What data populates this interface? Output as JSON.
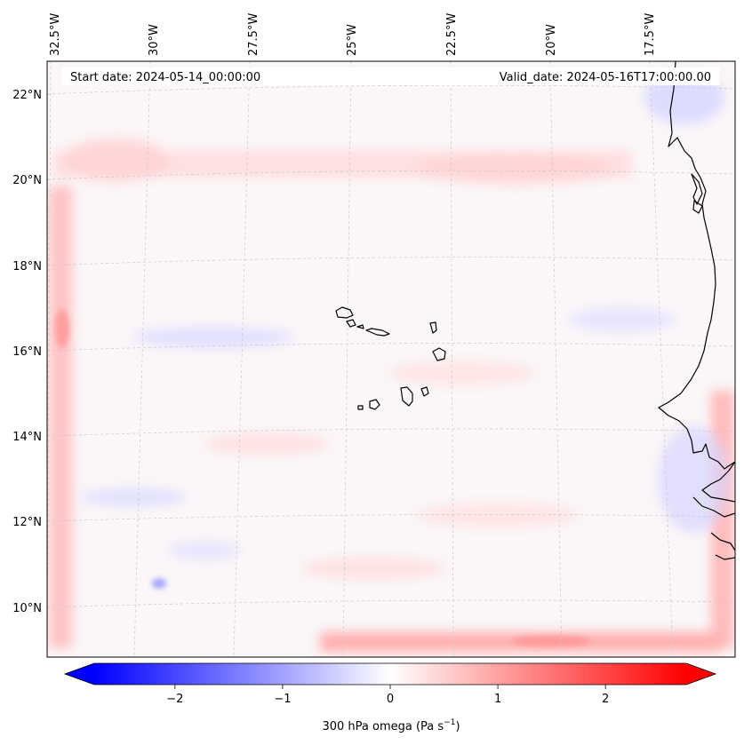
{
  "chart_data": {
    "type": "heatmap",
    "title": "",
    "start_date_label": "Start date: 2024-05-14_00:00:00",
    "valid_date_label": "Valid_date: 2024-05-16T17:00:00.00",
    "lon_ticks": [
      "32.5°W",
      "30°W",
      "27.5°W",
      "25°W",
      "22.5°W",
      "20°W",
      "17.5°W"
    ],
    "lat_ticks": [
      "22°N",
      "20°N",
      "18°N",
      "16°N",
      "14°N",
      "12°N",
      "10°N"
    ],
    "lon_range": [
      -33.0,
      -15.5
    ],
    "lat_range": [
      8.9,
      22.8
    ],
    "colorbar": {
      "label_prefix": "300 hPa omega (Pa s",
      "label_exp": "−1",
      "label_suffix": ")",
      "ticks": [
        "−2",
        "−1",
        "0",
        "1",
        "2"
      ],
      "range": [
        -2.75,
        2.75
      ],
      "colormap": "bwr",
      "extend": "both"
    },
    "field_range_approx": [
      -0.9,
      0.9
    ],
    "colors": {
      "negative": "#0000ff",
      "neutral": "#ffffff",
      "positive": "#ff0000",
      "coast": "#000000",
      "grid": "#bbbbbb"
    }
  }
}
